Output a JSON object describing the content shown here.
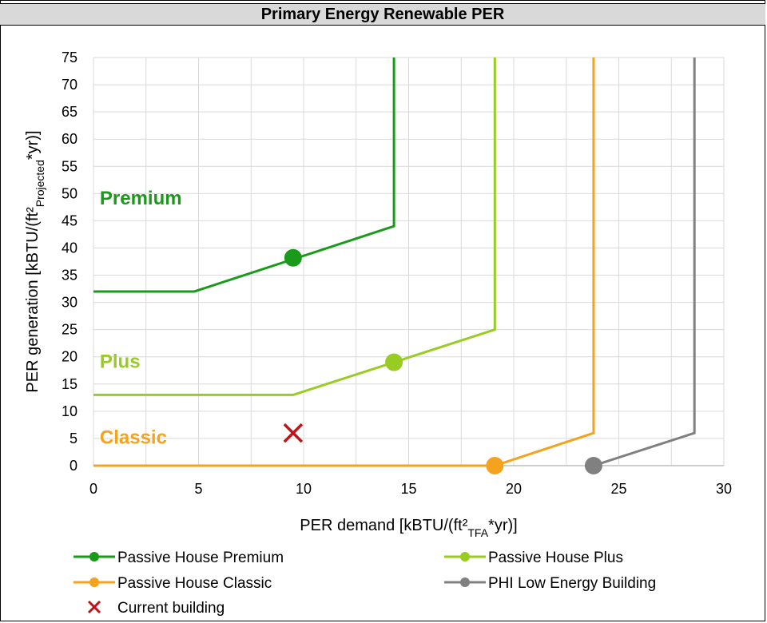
{
  "chart_data": {
    "type": "line",
    "title": "Primary Energy Renewable PER",
    "xlabel": {
      "pre": "PER demand [kBTU/(ft²",
      "sub": "TFA",
      "post": "*yr)]"
    },
    "ylabel": {
      "pre": "PER generation  [kBTU/(ft²",
      "sub": "Projected",
      "post": "*yr)]"
    },
    "xlim": [
      0,
      30
    ],
    "ylim": [
      0,
      75
    ],
    "x_ticks": [
      0,
      5,
      10,
      15,
      20,
      25,
      30
    ],
    "y_ticks": [
      0,
      5,
      10,
      15,
      20,
      25,
      30,
      35,
      40,
      45,
      50,
      55,
      60,
      65,
      70,
      75
    ],
    "grid": true,
    "legend_position": "bottom",
    "series": [
      {
        "name": "Passive House Premium",
        "color": "#1a9a1a",
        "x": [
          0,
          4.8,
          14.3,
          14.3
        ],
        "y": [
          32,
          32,
          44,
          75
        ],
        "marker": {
          "x": 9.5,
          "y": 38.2
        }
      },
      {
        "name": "Passive House Plus",
        "color": "#99cc22",
        "x": [
          0,
          9.5,
          19.1,
          19.1
        ],
        "y": [
          13,
          13,
          25,
          75
        ],
        "marker": {
          "x": 14.3,
          "y": 19
        }
      },
      {
        "name": "Passive House Classic",
        "color": "#f5a21f",
        "x": [
          0,
          19.1,
          23.8,
          23.8
        ],
        "y": [
          0,
          0,
          6,
          75
        ],
        "marker": {
          "x": 19.1,
          "y": 0
        }
      },
      {
        "name": "PHI Low Energy Building",
        "color": "#808080",
        "x": [
          23.8,
          28.6,
          28.6
        ],
        "y": [
          0,
          6,
          75
        ],
        "marker": {
          "x": 23.8,
          "y": 0
        }
      }
    ],
    "current_building": {
      "name": "Current building",
      "x": 9.5,
      "y": 6,
      "color": "#c0141c"
    },
    "zone_labels": [
      {
        "text": "Premium",
        "x": 0.3,
        "y": 48,
        "color": "#1a9a1a"
      },
      {
        "text": "Plus",
        "x": 0.3,
        "y": 18,
        "color": "#99cc22"
      },
      {
        "text": "Classic",
        "x": 0.3,
        "y": 4,
        "color": "#f5a21f"
      }
    ]
  }
}
